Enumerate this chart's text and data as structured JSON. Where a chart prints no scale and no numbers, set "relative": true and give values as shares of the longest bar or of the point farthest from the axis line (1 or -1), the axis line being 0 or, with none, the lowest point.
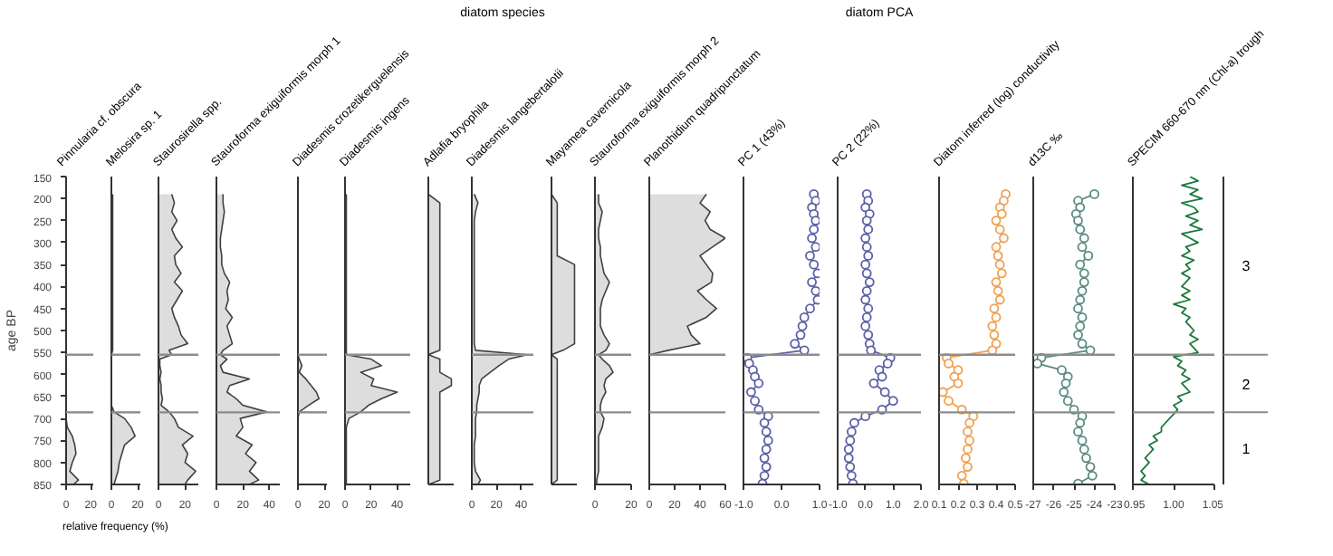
{
  "chart_data": [
    {
      "type": "area",
      "orientation": "horizontal",
      "title": "Pinnularia cf. obscura",
      "xlabel": "relative frequency (%)",
      "ylabel": "age BP",
      "xlim": [
        0,
        22
      ],
      "xticks": [
        0,
        20
      ],
      "ylim": [
        850,
        150
      ],
      "yticks": [
        150,
        200,
        250,
        300,
        350,
        400,
        450,
        500,
        550,
        600,
        650,
        700,
        750,
        800,
        850
      ],
      "grid": false,
      "ref_lines": [
        {
          "axis": "y",
          "value": 555
        },
        {
          "axis": "y",
          "value": 686
        }
      ],
      "x": [
        190,
        210,
        230,
        250,
        270,
        290,
        310,
        330,
        350,
        370,
        390,
        410,
        430,
        450,
        470,
        490,
        510,
        530,
        545,
        555,
        565,
        580,
        595,
        610,
        625,
        640,
        655,
        670,
        685,
        700,
        720,
        740,
        760,
        780,
        800,
        820,
        840,
        850
      ],
      "series": [
        {
          "color": "#404040",
          "values": [
            0,
            0,
            0,
            0,
            0,
            0,
            0,
            0,
            0,
            0,
            0,
            0,
            0,
            0,
            0,
            0,
            0,
            0,
            0,
            0,
            0,
            0,
            0,
            0,
            0,
            0,
            0,
            0,
            0,
            0,
            1,
            5,
            7,
            8,
            5,
            3,
            10,
            6
          ]
        }
      ]
    },
    {
      "type": "area",
      "orientation": "horizontal",
      "title": "Melosira sp. 1",
      "xlim": [
        0,
        22
      ],
      "xticks": [
        0,
        20
      ],
      "ylim": [
        850,
        150
      ],
      "tick_labels": "x",
      "grid": false,
      "ref_lines": [
        {
          "axis": "y",
          "value": 555
        },
        {
          "axis": "y",
          "value": 686
        }
      ],
      "x": [
        190,
        210,
        230,
        250,
        270,
        290,
        310,
        330,
        350,
        370,
        390,
        410,
        430,
        450,
        470,
        490,
        510,
        530,
        545,
        555,
        565,
        580,
        595,
        610,
        625,
        640,
        655,
        670,
        685,
        700,
        720,
        740,
        760,
        780,
        800,
        820,
        840,
        850
      ],
      "series": [
        {
          "color": "#404040",
          "values": [
            1,
            1,
            1,
            1,
            1,
            1,
            1,
            1,
            1,
            1,
            1,
            1,
            1,
            1,
            1,
            1,
            1,
            1,
            1,
            0,
            0,
            0,
            0,
            0,
            0,
            0,
            0,
            0,
            2,
            10,
            15,
            18,
            10,
            8,
            6,
            5,
            3,
            2
          ]
        }
      ]
    },
    {
      "type": "area",
      "orientation": "horizontal",
      "title": "Staurosirella spp.",
      "xlim": [
        0,
        30
      ],
      "xticks": [
        0,
        20
      ],
      "ylim": [
        850,
        150
      ],
      "tick_labels": "x",
      "grid": false,
      "ref_lines": [
        {
          "axis": "y",
          "value": 555
        },
        {
          "axis": "y",
          "value": 686
        }
      ],
      "x": [
        190,
        210,
        230,
        250,
        270,
        290,
        310,
        330,
        350,
        370,
        390,
        410,
        430,
        450,
        470,
        490,
        510,
        530,
        545,
        555,
        565,
        580,
        595,
        610,
        625,
        640,
        655,
        670,
        685,
        700,
        720,
        740,
        760,
        780,
        800,
        820,
        840,
        850
      ],
      "series": [
        {
          "color": "#404040",
          "values": [
            10,
            12,
            10,
            14,
            10,
            13,
            18,
            12,
            13,
            17,
            12,
            18,
            14,
            10,
            12,
            15,
            17,
            22,
            8,
            10,
            1,
            1,
            2,
            1,
            2,
            2,
            3,
            2,
            8,
            12,
            15,
            26,
            18,
            22,
            20,
            28,
            22,
            20
          ]
        }
      ]
    },
    {
      "type": "area",
      "orientation": "horizontal",
      "title": "Stauroforma exiguiformis morph 1",
      "xlim": [
        0,
        48
      ],
      "xticks": [
        0,
        20,
        40
      ],
      "ylim": [
        850,
        150
      ],
      "tick_labels": "x",
      "grid": false,
      "ref_lines": [
        {
          "axis": "y",
          "value": 555
        },
        {
          "axis": "y",
          "value": 686
        }
      ],
      "x": [
        190,
        210,
        230,
        250,
        270,
        290,
        310,
        330,
        350,
        370,
        390,
        410,
        430,
        450,
        470,
        490,
        510,
        530,
        545,
        555,
        565,
        580,
        595,
        610,
        625,
        640,
        655,
        670,
        685,
        700,
        720,
        740,
        760,
        780,
        800,
        820,
        840,
        850
      ],
      "series": [
        {
          "color": "#404040",
          "values": [
            5,
            5,
            6,
            5,
            4,
            3,
            3,
            4,
            4,
            6,
            10,
            8,
            9,
            7,
            12,
            8,
            10,
            12,
            5,
            3,
            8,
            3,
            5,
            25,
            10,
            8,
            15,
            20,
            38,
            18,
            20,
            15,
            27,
            22,
            30,
            25,
            32,
            25
          ]
        }
      ]
    },
    {
      "type": "area",
      "orientation": "horizontal",
      "title": "Diadesmis crozetikerguelensis",
      "xlim": [
        0,
        22
      ],
      "xticks": [
        0,
        20
      ],
      "ylim": [
        850,
        150
      ],
      "tick_labels": "x",
      "grid": false,
      "ref_lines": [
        {
          "axis": "y",
          "value": 555
        },
        {
          "axis": "y",
          "value": 686
        }
      ],
      "x": [
        190,
        210,
        230,
        250,
        270,
        290,
        310,
        330,
        350,
        370,
        390,
        410,
        430,
        450,
        470,
        490,
        510,
        530,
        545,
        555,
        565,
        580,
        595,
        610,
        625,
        640,
        655,
        670,
        685,
        700,
        720,
        740,
        760,
        780,
        800,
        820,
        840,
        850
      ],
      "series": [
        {
          "color": "#404040",
          "values": [
            0,
            0,
            0,
            0,
            0,
            0,
            0,
            0,
            0,
            0,
            0,
            0,
            0,
            0,
            0,
            0,
            0,
            0,
            0,
            0,
            1,
            3,
            1,
            6,
            10,
            14,
            16,
            8,
            1,
            0,
            0,
            0,
            0,
            0,
            0,
            0,
            0,
            0
          ]
        }
      ]
    },
    {
      "type": "area",
      "orientation": "horizontal",
      "title": "Diadesmis ingens",
      "xlim": [
        0,
        50
      ],
      "xticks": [
        0,
        20,
        40
      ],
      "ylim": [
        850,
        150
      ],
      "tick_labels": "x",
      "grid": false,
      "ref_lines": [
        {
          "axis": "y",
          "value": 555
        },
        {
          "axis": "y",
          "value": 686
        }
      ],
      "x": [
        190,
        210,
        230,
        250,
        270,
        290,
        310,
        330,
        350,
        370,
        390,
        410,
        430,
        450,
        470,
        490,
        510,
        530,
        545,
        555,
        565,
        580,
        595,
        610,
        625,
        640,
        655,
        670,
        685,
        700,
        720,
        740,
        760,
        780,
        800,
        820,
        840,
        850
      ],
      "series": [
        {
          "color": "#404040",
          "values": [
            1,
            1,
            1,
            1,
            1,
            1,
            1,
            1,
            1,
            1,
            1,
            1,
            1,
            1,
            1,
            1,
            1,
            1,
            1,
            1,
            20,
            28,
            12,
            22,
            20,
            40,
            28,
            18,
            12,
            3,
            1,
            1,
            1,
            1,
            1,
            1,
            1,
            1
          ]
        }
      ]
    },
    {
      "type": "area",
      "orientation": "horizontal",
      "title": "Adlafia bryophila",
      "relative": true,
      "annotations": [
        "0"
      ],
      "ylim": [
        850,
        150
      ],
      "tick_labels": "x",
      "grid": false,
      "x": [
        190,
        210,
        230,
        250,
        270,
        290,
        310,
        330,
        350,
        370,
        390,
        410,
        430,
        450,
        470,
        490,
        510,
        530,
        545,
        555,
        565,
        580,
        595,
        610,
        625,
        640,
        655,
        670,
        685,
        700,
        720,
        740,
        760,
        780,
        800,
        820,
        840,
        850
      ],
      "series": [
        {
          "color": "#404040",
          "values": [
            0,
            0.5,
            0.5,
            0.5,
            0.5,
            0.5,
            0.5,
            0.5,
            0.5,
            0.5,
            0.5,
            0.5,
            0.5,
            0.5,
            0.5,
            0.5,
            0.5,
            0.5,
            0.5,
            0,
            0.5,
            0.5,
            0.5,
            1,
            1,
            0.5,
            0.5,
            0.5,
            0.5,
            0.5,
            0.5,
            0.5,
            0.5,
            0.5,
            0.5,
            0.5,
            0.5,
            0
          ]
        }
      ]
    },
    {
      "type": "area",
      "orientation": "horizontal",
      "title": "Diadesmis langebertalotii",
      "xlim": [
        0,
        50
      ],
      "xticks": [
        0,
        20,
        40
      ],
      "ylim": [
        850,
        150
      ],
      "tick_labels": "x",
      "grid": false,
      "annotations": [
        "diatom species"
      ],
      "ref_lines": [
        {
          "axis": "y",
          "value": 555
        },
        {
          "axis": "y",
          "value": 686
        }
      ],
      "x": [
        190,
        210,
        230,
        250,
        270,
        290,
        310,
        330,
        350,
        370,
        390,
        410,
        430,
        450,
        470,
        490,
        510,
        530,
        545,
        555,
        565,
        580,
        595,
        610,
        625,
        640,
        655,
        670,
        685,
        700,
        720,
        740,
        760,
        780,
        800,
        820,
        840,
        850
      ],
      "series": [
        {
          "color": "#404040",
          "values": [
            2,
            5,
            3,
            2,
            2,
            2,
            2,
            2,
            2,
            2,
            2,
            2,
            2,
            2,
            2,
            2,
            2,
            2,
            3,
            45,
            30,
            22,
            15,
            8,
            6,
            6,
            5,
            4,
            4,
            3,
            3,
            3,
            2,
            2,
            2,
            3,
            7,
            5
          ]
        }
      ]
    },
    {
      "type": "area",
      "orientation": "horizontal",
      "title": "Mayamea cavernicola",
      "relative": true,
      "annotations": [
        "0"
      ],
      "ylim": [
        850,
        150
      ],
      "tick_labels": "x",
      "grid": false,
      "x": [
        190,
        210,
        230,
        250,
        270,
        290,
        310,
        330,
        350,
        370,
        390,
        410,
        430,
        450,
        470,
        490,
        510,
        530,
        545,
        555,
        565,
        580,
        595,
        610,
        625,
        640,
        655,
        670,
        685,
        700,
        720,
        740,
        760,
        780,
        800,
        820,
        840,
        850
      ],
      "series": [
        {
          "color": "#404040",
          "values": [
            0,
            0.25,
            0.25,
            0.25,
            0.25,
            0.25,
            0.25,
            0.25,
            1,
            1,
            1,
            1,
            1,
            1,
            1,
            1,
            1,
            1,
            0.5,
            0,
            0.25,
            0.25,
            0.25,
            0.25,
            0.25,
            0.25,
            0.25,
            0.25,
            0.25,
            0.25,
            0.25,
            0.25,
            0.25,
            0.25,
            0.25,
            0.25,
            0.25,
            0
          ]
        }
      ]
    },
    {
      "type": "area",
      "orientation": "horizontal",
      "title": "Stauroforma exiguiformis morph 2",
      "xlim": [
        0,
        20
      ],
      "xticks": [
        0,
        20
      ],
      "ylim": [
        850,
        150
      ],
      "tick_labels": "x",
      "grid": false,
      "ref_lines": [
        {
          "axis": "y",
          "value": 555
        },
        {
          "axis": "y",
          "value": 686
        }
      ],
      "x": [
        190,
        210,
        230,
        250,
        270,
        290,
        310,
        330,
        350,
        370,
        390,
        410,
        430,
        450,
        470,
        490,
        510,
        530,
        545,
        555,
        565,
        580,
        595,
        610,
        625,
        640,
        655,
        670,
        685,
        700,
        720,
        740,
        760,
        780,
        800,
        820,
        840,
        850
      ],
      "series": [
        {
          "color": "#404040",
          "values": [
            2,
            2,
            4,
            3,
            2,
            2,
            3,
            3,
            4,
            5,
            8,
            6,
            4,
            3,
            3,
            3,
            5,
            8,
            6,
            2,
            4,
            8,
            10,
            6,
            5,
            6,
            4,
            3,
            3,
            5,
            4,
            2,
            2,
            2,
            2,
            2,
            1,
            1
          ]
        }
      ]
    },
    {
      "type": "area",
      "orientation": "horizontal",
      "title": "Planothidium quadripunctatum",
      "xlim": [
        0,
        60
      ],
      "xticks": [
        0,
        20,
        40,
        60
      ],
      "ylim": [
        850,
        150
      ],
      "tick_labels": "x",
      "grid": false,
      "ref_lines": [
        {
          "axis": "y",
          "value": 555
        },
        {
          "axis": "y",
          "value": 686
        }
      ],
      "x": [
        190,
        210,
        230,
        250,
        270,
        290,
        310,
        330,
        350,
        370,
        390,
        410,
        430,
        450,
        470,
        490,
        510,
        530,
        545,
        555,
        565,
        580,
        595,
        610,
        625,
        640,
        655,
        670,
        685,
        700,
        720,
        740,
        760,
        780,
        800,
        820,
        840,
        850
      ],
      "series": [
        {
          "color": "#404040",
          "values": [
            45,
            40,
            48,
            44,
            48,
            60,
            50,
            40,
            45,
            50,
            49,
            38,
            45,
            53,
            45,
            30,
            33,
            40,
            15,
            0,
            0,
            0,
            0,
            0,
            0,
            0,
            0,
            0,
            0,
            0,
            0,
            0,
            0,
            0,
            0,
            0,
            0,
            0
          ]
        }
      ]
    },
    {
      "type": "line",
      "orientation": "horizontal",
      "marker": "circle",
      "title": "PC 1 (43%)",
      "xlim": [
        -1.0,
        1.0
      ],
      "xticks": [
        {
          "value": -1,
          "label": "-1.0"
        },
        {
          "value": 0,
          "label": "0.0"
        },
        {
          "value": 1,
          "label": "1.0"
        }
      ],
      "ylim": [
        850,
        150
      ],
      "tick_labels": "x",
      "grid": false,
      "ref_lines": [
        {
          "axis": "y",
          "value": 555
        },
        {
          "axis": "y",
          "value": 686
        }
      ],
      "x": [
        190,
        205,
        220,
        235,
        250,
        270,
        290,
        310,
        330,
        350,
        370,
        390,
        410,
        430,
        450,
        470,
        490,
        510,
        530,
        545,
        562,
        575,
        590,
        605,
        620,
        640,
        660,
        680,
        695,
        710,
        730,
        750,
        770,
        790,
        810,
        830,
        848
      ],
      "series": [
        {
          "color": "#5b5ea6",
          "values": [
            0.85,
            0.9,
            0.8,
            0.85,
            0.9,
            0.85,
            0.8,
            0.9,
            0.75,
            0.85,
            0.95,
            0.8,
            0.9,
            0.95,
            0.75,
            0.6,
            0.55,
            0.5,
            0.35,
            0.6,
            -0.9,
            -0.85,
            -0.75,
            -0.7,
            -0.6,
            -0.8,
            -0.7,
            -0.6,
            -0.35,
            -0.45,
            -0.4,
            -0.35,
            -0.4,
            -0.45,
            -0.4,
            -0.45,
            -0.5
          ]
        }
      ]
    },
    {
      "type": "line",
      "orientation": "horizontal",
      "marker": "circle",
      "title": "PC 2 (22%)",
      "xlim": [
        -1.0,
        2.0
      ],
      "xticks": [
        {
          "value": -1,
          "label": "-1.0"
        },
        {
          "value": 0,
          "label": "0.0"
        },
        {
          "value": 1,
          "label": "1.0"
        },
        {
          "value": 2,
          "label": "2.0"
        }
      ],
      "ylim": [
        850,
        150
      ],
      "tick_labels": "x",
      "grid": false,
      "annotations": [
        "diatom PCA"
      ],
      "ref_lines": [
        {
          "axis": "y",
          "value": 555
        },
        {
          "axis": "y",
          "value": 686
        }
      ],
      "x": [
        190,
        205,
        220,
        235,
        250,
        270,
        290,
        310,
        330,
        350,
        370,
        390,
        410,
        430,
        450,
        470,
        490,
        510,
        530,
        545,
        562,
        575,
        590,
        605,
        620,
        640,
        660,
        680,
        695,
        710,
        730,
        750,
        770,
        790,
        810,
        830,
        848
      ],
      "series": [
        {
          "color": "#5b5ea6",
          "values": [
            0.05,
            0.1,
            0.0,
            0.15,
            0.05,
            0.1,
            0.0,
            0.05,
            0.1,
            0.0,
            0.05,
            0.15,
            0.05,
            0.0,
            0.1,
            0.05,
            0.0,
            0.1,
            0.15,
            0.2,
            0.9,
            0.8,
            0.5,
            0.6,
            0.3,
            0.7,
            1.0,
            0.6,
            0.0,
            -0.4,
            -0.5,
            -0.55,
            -0.6,
            -0.6,
            -0.55,
            -0.5,
            -0.45
          ]
        }
      ]
    },
    {
      "type": "line",
      "orientation": "horizontal",
      "marker": "circle",
      "title": "Diatom inferred (log) conductivity",
      "xlim": [
        0.1,
        0.5
      ],
      "xticks": [
        0.1,
        0.2,
        0.3,
        0.4,
        0.5
      ],
      "ylim": [
        850,
        150
      ],
      "tick_labels": "x",
      "grid": false,
      "ref_lines": [
        {
          "axis": "y",
          "value": 555
        },
        {
          "axis": "y",
          "value": 686
        }
      ],
      "x": [
        190,
        205,
        220,
        235,
        250,
        270,
        290,
        310,
        330,
        350,
        370,
        390,
        410,
        430,
        450,
        470,
        490,
        510,
        530,
        545,
        562,
        575,
        590,
        605,
        620,
        640,
        660,
        680,
        695,
        710,
        730,
        750,
        770,
        790,
        810,
        830,
        848
      ],
      "series": [
        {
          "color": "#f0a050",
          "values": [
            0.45,
            0.44,
            0.42,
            0.43,
            0.4,
            0.42,
            0.44,
            0.4,
            0.41,
            0.42,
            0.43,
            0.4,
            0.41,
            0.42,
            0.39,
            0.4,
            0.38,
            0.39,
            0.4,
            0.38,
            0.14,
            0.15,
            0.2,
            0.18,
            0.2,
            0.12,
            0.15,
            0.22,
            0.28,
            0.26,
            0.25,
            0.26,
            0.25,
            0.24,
            0.25,
            0.22,
            0.23
          ]
        }
      ]
    },
    {
      "type": "line",
      "orientation": "horizontal",
      "marker": "circle",
      "title": "d13C ‰",
      "xlim": [
        -27,
        -23
      ],
      "xticks": [
        -27,
        -26,
        -25,
        -24,
        -23
      ],
      "ylim": [
        850,
        150
      ],
      "tick_labels": "x",
      "grid": false,
      "ref_lines": [
        {
          "axis": "y",
          "value": 555
        },
        {
          "axis": "y",
          "value": 686
        }
      ],
      "x": [
        190,
        205,
        220,
        235,
        250,
        270,
        290,
        310,
        330,
        350,
        370,
        390,
        410,
        430,
        450,
        470,
        490,
        510,
        530,
        545,
        562,
        575,
        590,
        605,
        620,
        640,
        660,
        680,
        695,
        710,
        730,
        750,
        770,
        790,
        810,
        830,
        848
      ],
      "series": [
        {
          "color": "#5a8a80",
          "values": [
            -24.0,
            -24.8,
            -24.7,
            -24.9,
            -24.8,
            -24.7,
            -24.5,
            -24.6,
            -24.3,
            -24.7,
            -24.5,
            -24.5,
            -24.6,
            -24.7,
            -24.8,
            -24.6,
            -24.7,
            -24.8,
            -24.6,
            -24.2,
            -26.6,
            -26.8,
            -25.6,
            -25.3,
            -25.4,
            -25.5,
            -25.3,
            -25.0,
            -24.6,
            -24.7,
            -24.8,
            -24.6,
            -24.5,
            -24.4,
            -24.2,
            -24.1,
            -24.8
          ]
        }
      ]
    },
    {
      "type": "line",
      "orientation": "horizontal",
      "title": "SPECIM 660-670 nm (Chl-a) trough",
      "xlim": [
        0.95,
        1.05
      ],
      "xticks": [
        0.95,
        {
          "value": 1.0,
          "label": "1.00"
        },
        1.05
      ],
      "ylim": [
        850,
        150
      ],
      "tick_labels": "x",
      "grid": false,
      "annotations": [
        "3",
        "2",
        "1"
      ],
      "ref_lines": [
        {
          "axis": "y",
          "value": 555
        },
        {
          "axis": "y",
          "value": 686
        }
      ],
      "x": [
        150,
        160,
        170,
        180,
        190,
        200,
        210,
        220,
        230,
        240,
        250,
        260,
        270,
        280,
        290,
        300,
        310,
        320,
        330,
        340,
        350,
        360,
        370,
        380,
        390,
        400,
        410,
        420,
        430,
        440,
        450,
        460,
        470,
        480,
        490,
        500,
        510,
        520,
        530,
        540,
        550,
        560,
        570,
        580,
        590,
        600,
        610,
        620,
        630,
        640,
        650,
        660,
        670,
        680,
        690,
        700,
        710,
        720,
        730,
        740,
        750,
        760,
        770,
        780,
        790,
        800,
        810,
        820,
        830,
        840,
        850
      ],
      "series": [
        {
          "color": "#1a7a3a",
          "values": [
            1.02,
            1.03,
            1.01,
            1.03,
            1.02,
            1.035,
            1.01,
            1.025,
            1.03,
            1.015,
            1.03,
            1.02,
            1.035,
            1.01,
            1.02,
            1.03,
            1.015,
            1.02,
            1.01,
            1.025,
            1.015,
            1.02,
            1.01,
            1.02,
            1.015,
            1.01,
            1.02,
            1.01,
            1.02,
            1.0,
            1.015,
            1.01,
            1.02,
            1.015,
            1.02,
            1.025,
            1.02,
            1.03,
            1.02,
            1.025,
            1.03,
            1.0,
            1.01,
            1.005,
            1.015,
            1.01,
            1.02,
            1.01,
            1.015,
            1.02,
            1.005,
            1.01,
            1.0,
            1.005,
            1.0,
            0.995,
            0.99,
            0.985,
            0.985,
            0.975,
            0.98,
            0.97,
            0.975,
            0.97,
            0.965,
            0.97,
            0.965,
            0.96,
            0.965,
            0.96,
            0.97
          ]
        }
      ]
    }
  ]
}
